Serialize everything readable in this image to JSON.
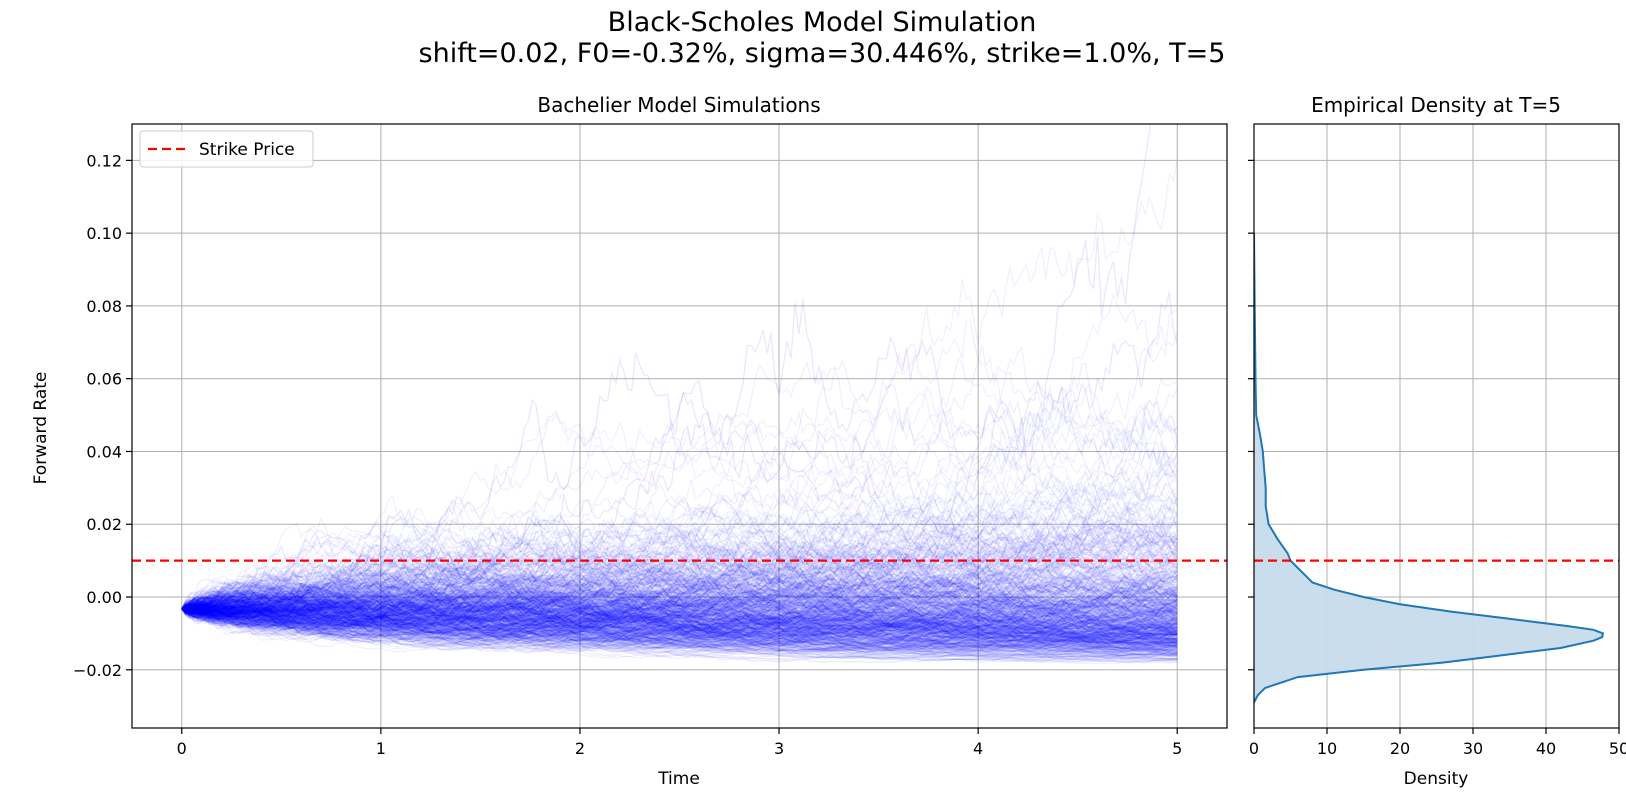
{
  "figure": {
    "title_line1": "Black-Scholes Model Simulation",
    "title_line2": "shift=0.02, F0=-0.32%, sigma=30.446%, strike=1.0%, T=5"
  },
  "colors": {
    "paths": "#0000ff",
    "strike": "#ff0000",
    "density_line": "#1f77b4",
    "density_fill": "#c6dbeb",
    "grid": "#b0b0b0"
  },
  "chart_data": [
    {
      "type": "line",
      "title": "Bachelier Model Simulations",
      "xlabel": "Time",
      "ylabel": "Forward Rate",
      "xlim": [
        -0.25,
        5.25
      ],
      "ylim": [
        -0.036,
        0.13
      ],
      "xticks": [
        0,
        1,
        2,
        3,
        4,
        5
      ],
      "xtick_labels": [
        "0",
        "1",
        "2",
        "3",
        "4",
        "5"
      ],
      "yticks": [
        -0.02,
        0.0,
        0.02,
        0.04,
        0.06,
        0.08,
        0.1,
        0.12
      ],
      "ytick_labels": [
        "−0.02",
        "0.00",
        "0.02",
        "0.04",
        "0.06",
        "0.08",
        "0.10",
        "0.12"
      ],
      "grid": true,
      "legend": {
        "position": "upper-left",
        "entries": [
          "Strike Price"
        ]
      },
      "strike": 0.01,
      "simulation": {
        "F0": -0.0032,
        "shift": 0.02,
        "sigma": 0.30446,
        "T": 5,
        "paths_shown": "many (~1000)",
        "upper_envelope": [
          [
            0,
            -0.0032
          ],
          [
            0.5,
            0.008
          ],
          [
            1,
            0.016
          ],
          [
            1.5,
            0.03
          ],
          [
            2,
            0.045
          ],
          [
            2.5,
            0.055
          ],
          [
            3,
            0.062
          ],
          [
            3.5,
            0.066
          ],
          [
            4,
            0.105
          ],
          [
            4.5,
            0.122
          ],
          [
            5,
            0.1
          ]
        ],
        "dense_band_upper": [
          [
            0,
            -0.0032
          ],
          [
            0.5,
            0.003
          ],
          [
            1,
            0.005
          ],
          [
            2,
            0.009
          ],
          [
            3,
            0.011
          ],
          [
            4,
            0.013
          ],
          [
            5,
            0.013
          ]
        ],
        "dense_band_lower": [
          [
            0,
            -0.0032
          ],
          [
            0.5,
            -0.009
          ],
          [
            1,
            -0.011
          ],
          [
            2,
            -0.013
          ],
          [
            3,
            -0.014
          ],
          [
            4,
            -0.0155
          ],
          [
            5,
            -0.0165
          ]
        ]
      }
    },
    {
      "type": "area",
      "title": "Empirical Density at T=5",
      "xlabel": "Density",
      "xlim": [
        0,
        50
      ],
      "xticks": [
        0,
        10,
        20,
        30,
        40,
        50
      ],
      "xtick_labels": [
        "0",
        "10",
        "20",
        "30",
        "40",
        "50"
      ],
      "ylim": [
        -0.036,
        0.13
      ],
      "grid": true,
      "strike": 0.01,
      "density_curve": {
        "y": [
          -0.029,
          -0.027,
          -0.025,
          -0.022,
          -0.02,
          -0.018,
          -0.016,
          -0.014,
          -0.012,
          -0.011,
          -0.01,
          -0.009,
          -0.008,
          -0.006,
          -0.004,
          -0.002,
          0.0,
          0.002,
          0.004,
          0.006,
          0.008,
          0.01,
          0.012,
          0.016,
          0.02,
          0.025,
          0.03,
          0.035,
          0.04,
          0.045,
          0.05,
          0.055,
          0.06,
          0.07,
          0.08,
          0.1
        ],
        "density": [
          0.0,
          0.5,
          1.5,
          6.0,
          15.0,
          26.0,
          34.0,
          42.0,
          46.5,
          47.7,
          47.8,
          46.5,
          43.0,
          35.0,
          27.0,
          20.0,
          15.0,
          11.0,
          8.0,
          7.0,
          6.0,
          5.0,
          4.6,
          3.2,
          2.0,
          1.6,
          1.6,
          1.4,
          1.2,
          0.8,
          0.3,
          0.25,
          0.2,
          0.15,
          0.1,
          0.0
        ]
      }
    }
  ]
}
